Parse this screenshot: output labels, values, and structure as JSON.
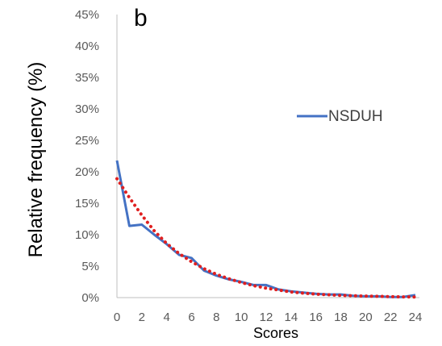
{
  "chart_data": {
    "type": "line",
    "panel_label": "b",
    "title": "",
    "xlabel": "Scores",
    "ylabel": "Relative frequency  (%)",
    "xlim": [
      0,
      24
    ],
    "ylim": [
      0,
      45
    ],
    "x_ticks": [
      0,
      2,
      4,
      6,
      8,
      10,
      12,
      14,
      16,
      18,
      20,
      22,
      24
    ],
    "y_ticks": [
      0,
      5,
      10,
      15,
      20,
      25,
      30,
      35,
      40,
      45
    ],
    "y_tick_suffix": "%",
    "grid": false,
    "legend": {
      "placement": "right",
      "entries": [
        "NSDUH"
      ]
    },
    "x": [
      0,
      1,
      2,
      3,
      4,
      5,
      6,
      7,
      8,
      9,
      10,
      11,
      12,
      13,
      14,
      15,
      16,
      17,
      18,
      19,
      20,
      21,
      22,
      23,
      24
    ],
    "series": [
      {
        "name": "NSDUH",
        "style": "solid",
        "color": "#4472c4",
        "values": [
          21.8,
          11.4,
          11.6,
          10.0,
          8.5,
          6.8,
          6.3,
          4.3,
          3.5,
          2.9,
          2.5,
          2.0,
          2.0,
          1.3,
          1.0,
          0.8,
          0.6,
          0.5,
          0.5,
          0.3,
          0.2,
          0.2,
          0.1,
          0.1,
          0.4
        ]
      },
      {
        "style": "dotted",
        "color": "#e02020",
        "values": [
          18.9,
          15.9,
          13.1,
          10.6,
          8.6,
          7.0,
          5.7,
          4.6,
          3.7,
          3.0,
          2.4,
          1.9,
          1.5,
          1.2,
          0.9,
          0.7,
          0.55,
          0.45,
          0.35,
          0.3,
          0.25,
          0.2,
          0.15,
          0.12,
          0.1
        ]
      }
    ]
  }
}
